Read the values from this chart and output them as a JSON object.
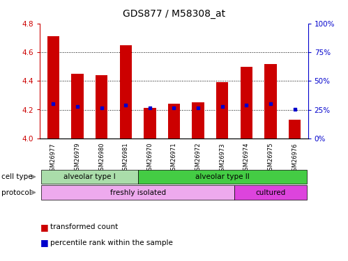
{
  "title": "GDS877 / M58308_at",
  "samples": [
    "GSM26977",
    "GSM26979",
    "GSM26980",
    "GSM26981",
    "GSM26970",
    "GSM26971",
    "GSM26972",
    "GSM26973",
    "GSM26974",
    "GSM26975",
    "GSM26976"
  ],
  "bar_values": [
    4.71,
    4.45,
    4.44,
    4.65,
    4.21,
    4.24,
    4.25,
    4.39,
    4.5,
    4.52,
    4.13
  ],
  "percentile_values": [
    4.24,
    4.22,
    4.21,
    4.23,
    4.21,
    4.21,
    4.21,
    4.22,
    4.23,
    4.24,
    4.2
  ],
  "ylim": [
    4.0,
    4.8
  ],
  "yticks": [
    4.0,
    4.2,
    4.4,
    4.6,
    4.8
  ],
  "y2ticks": [
    0,
    25,
    50,
    75,
    100
  ],
  "y2labels": [
    "0%",
    "25%",
    "50%",
    "75%",
    "100%"
  ],
  "bar_color": "#cc0000",
  "percentile_color": "#0000cc",
  "tick_color_left": "#cc0000",
  "tick_color_right": "#0000cc",
  "bar_width": 0.5,
  "cell_type_data": [
    {
      "span": [
        0,
        3
      ],
      "label": "alveolar type I",
      "color": "#aaddaa"
    },
    {
      "span": [
        4,
        10
      ],
      "label": "alveolar type II",
      "color": "#44cc44"
    }
  ],
  "protocol_data": [
    {
      "span": [
        0,
        7
      ],
      "label": "freshly isolated",
      "color": "#eeaaee"
    },
    {
      "span": [
        8,
        10
      ],
      "label": "cultured",
      "color": "#dd44dd"
    }
  ],
  "row_labels": [
    "cell type",
    "protocol"
  ]
}
